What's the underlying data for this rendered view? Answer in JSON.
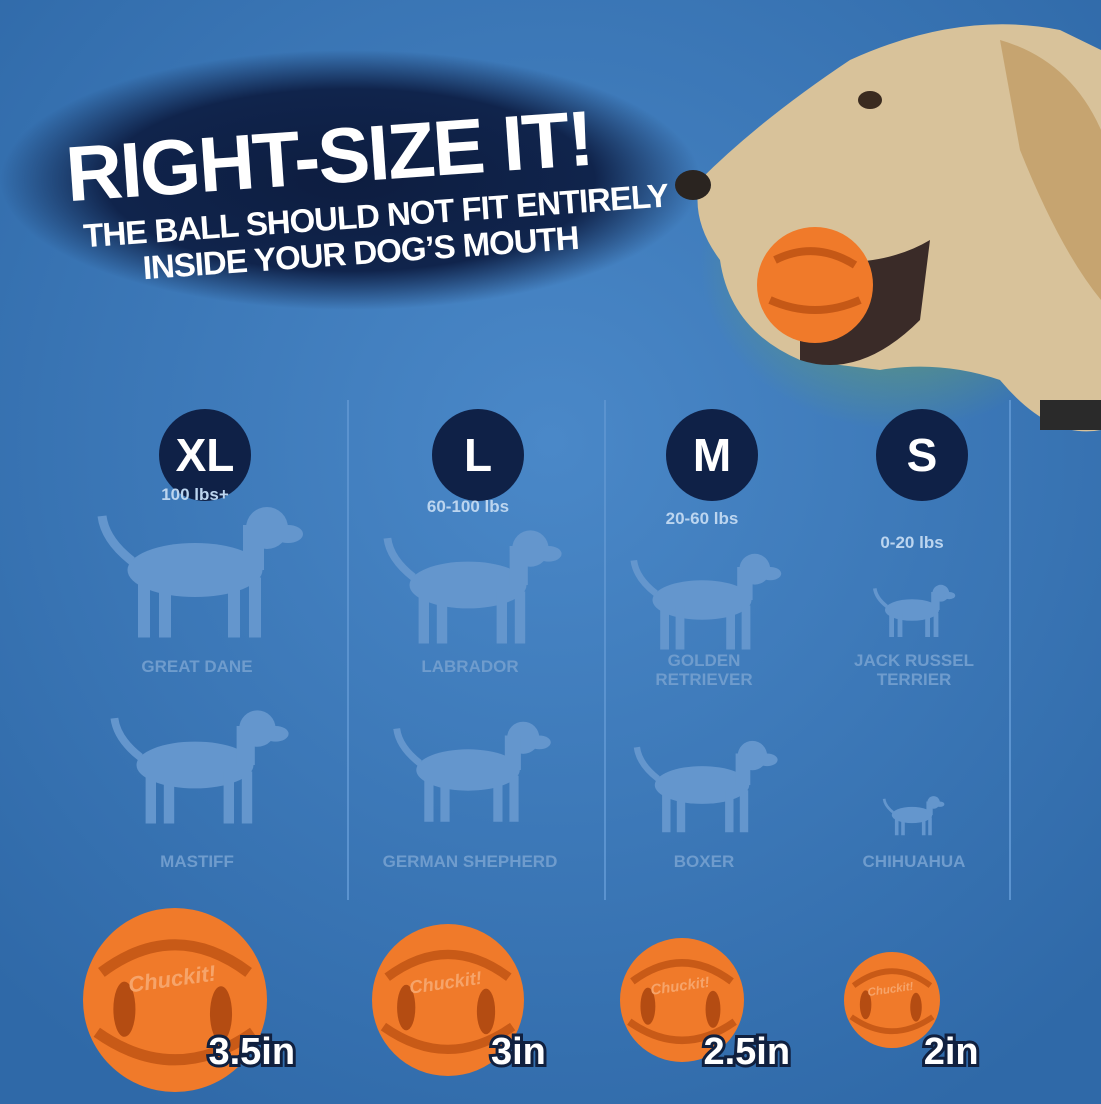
{
  "header": {
    "title": "RIGHT-SIZE IT!",
    "subtitle": [
      "THE BALL SHOULD NOT FIT ENTIRELY",
      "INSIDE YOUR DOG’S MOUTH"
    ]
  },
  "brand": "Chuckit!",
  "sizes": [
    {
      "label": "XL",
      "weight": "100 lbs+",
      "breeds": [
        "GREAT DANE",
        "MASTIFF"
      ],
      "ball": "3.5in"
    },
    {
      "label": "L",
      "weight": "60-100 lbs",
      "breeds": [
        "LABRADOR",
        "GERMAN SHEPHERD"
      ],
      "ball": "3in"
    },
    {
      "label": "M",
      "weight": "20-60 lbs",
      "breeds": [
        "GOLDEN RETRIEVER",
        "BOXER"
      ],
      "ball": "2.5in"
    },
    {
      "label": "S",
      "weight": "0-20 lbs",
      "breeds": [
        "JACK RUSSEL TERRIER",
        "CHIHUAHUA"
      ],
      "ball": "2in"
    }
  ]
}
